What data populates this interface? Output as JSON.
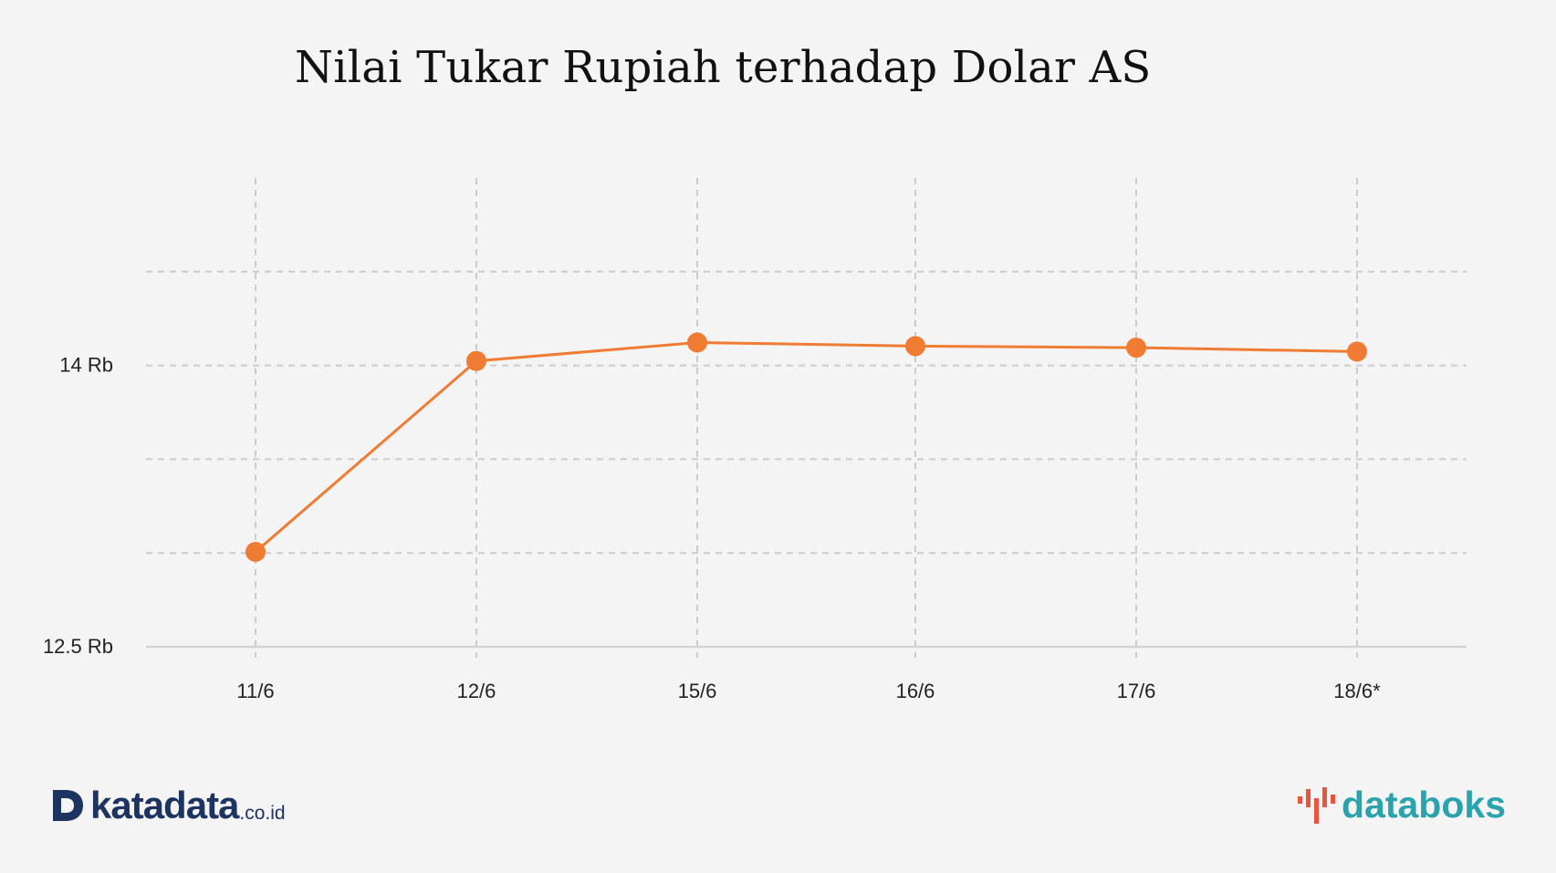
{
  "chart_data": {
    "type": "line",
    "title": "Nilai Tukar Rupiah terhadap Dolar AS",
    "xlabel": "",
    "ylabel": "",
    "categories": [
      "11/6",
      "12/6",
      "15/6",
      "16/6",
      "17/6",
      "18/6*"
    ],
    "series": [
      {
        "values": [
          13006,
          14024,
          14122,
          14103,
          14095,
          14074
        ]
      }
    ],
    "ylim": [
      12500,
      15000
    ],
    "yticks": [
      {
        "value": 12500,
        "label": "12.5 Rb"
      },
      {
        "value": 13000,
        "label": ""
      },
      {
        "value": 13500,
        "label": ""
      },
      {
        "value": 14000,
        "label": "14 Rb"
      },
      {
        "value": 14500,
        "label": ""
      }
    ],
    "grid": true,
    "colors": {
      "line": "#f07b32",
      "grid": "#cccccc",
      "axis": "#d3d3d3"
    }
  },
  "branding": {
    "left": {
      "name": "katadata",
      "suffix": ".co.id",
      "color": "#1d3461"
    },
    "right": {
      "name": "databoks",
      "color": "#2aa3ad",
      "accent": "#e8543c"
    }
  }
}
